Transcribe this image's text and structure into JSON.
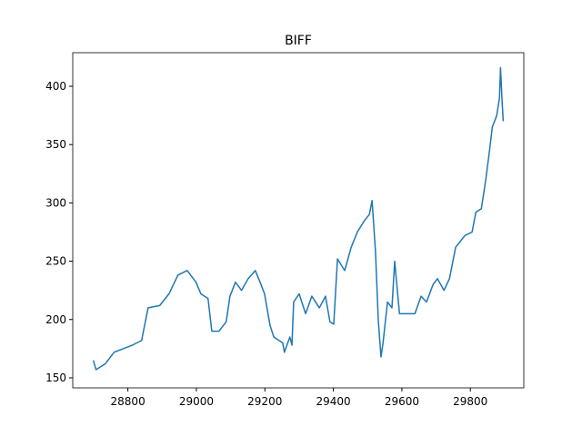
{
  "chart_data": {
    "type": "line",
    "title": "BIFF",
    "x": [
      28699,
      28707,
      28734,
      28760,
      28787,
      28813,
      28840,
      28859,
      28893,
      28920,
      28946,
      28973,
      28999,
      29013,
      29034,
      29045,
      29066,
      29087,
      29098,
      29114,
      29132,
      29151,
      29172,
      29186,
      29199,
      29215,
      29226,
      29252,
      29257,
      29273,
      29279,
      29284,
      29300,
      29319,
      29337,
      29359,
      29377,
      29390,
      29401,
      29412,
      29433,
      29452,
      29470,
      29491,
      29505,
      29513,
      29523,
      29531,
      29539,
      29545,
      29558,
      29571,
      29579,
      29593,
      29611,
      29638,
      29656,
      29672,
      29691,
      29704,
      29723,
      29739,
      29757,
      29784,
      29805,
      29816,
      29832,
      29845,
      29856,
      29864,
      29877,
      29885,
      29888,
      29893,
      29896
    ],
    "series": [
      {
        "color": "#1f77b4",
        "values": [
          165,
          157,
          162,
          172,
          175,
          178,
          182,
          210,
          212,
          222,
          238,
          242,
          232,
          222,
          218,
          190,
          190,
          198,
          220,
          232,
          225,
          235,
          242,
          232,
          222,
          195,
          185,
          180,
          172,
          185,
          178,
          215,
          222,
          205,
          220,
          210,
          220,
          198,
          196,
          252,
          242,
          262,
          275,
          285,
          290,
          302,
          258,
          200,
          168,
          180,
          215,
          210,
          250,
          205,
          205,
          205,
          220,
          215,
          230,
          235,
          225,
          235,
          262,
          272,
          275,
          292,
          295,
          320,
          345,
          365,
          375,
          390,
          416,
          385,
          370
        ]
      }
    ],
    "xlim": [
      28639,
      29956
    ],
    "ylim": [
      141.4,
      428.8
    ],
    "xticks": [
      28800,
      29000,
      29200,
      29400,
      29600,
      29800
    ],
    "yticks": [
      150,
      200,
      250,
      300,
      350,
      400
    ]
  }
}
